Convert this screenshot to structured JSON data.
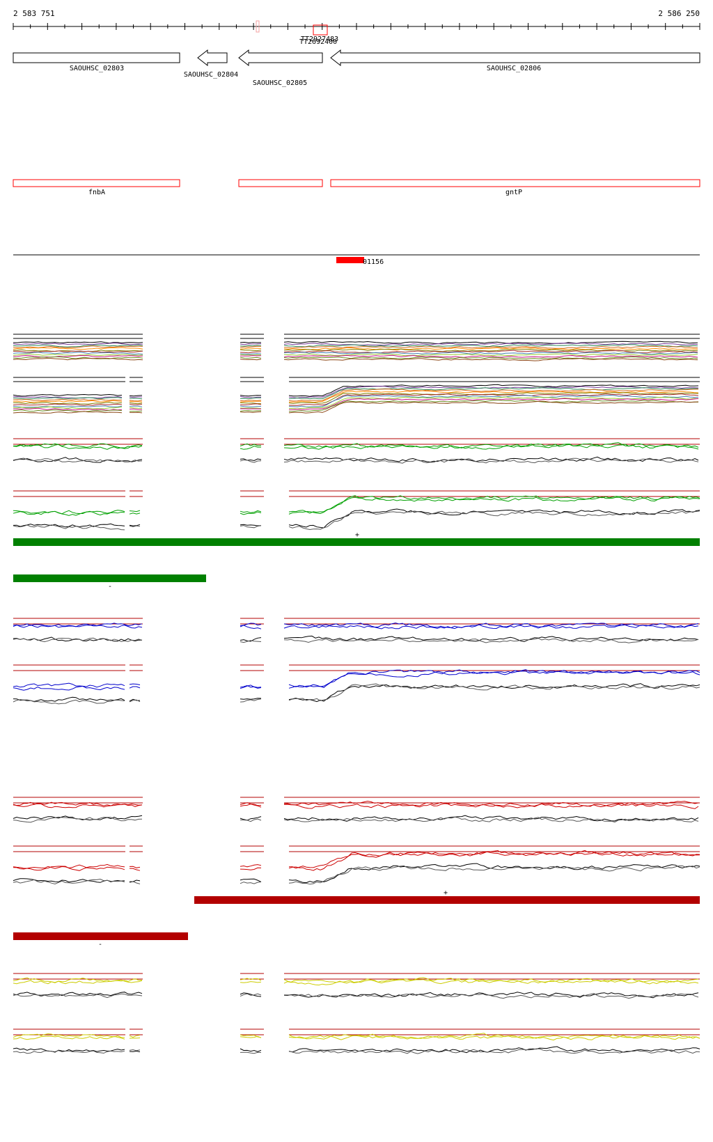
{
  "coordinates": {
    "start_label": "2 583 751",
    "end_label": "2 586 250"
  },
  "terminator_labels": [
    "TT2927483",
    "TT2692400"
  ],
  "genes": [
    {
      "name": "SAOUHSC_02803",
      "strand": "+"
    },
    {
      "name": "SAOUHSC_02804",
      "strand": "-"
    },
    {
      "name": "SAOUHSC_02805",
      "strand": "-"
    },
    {
      "name": "SAOUHSC_02806",
      "strand": "-"
    }
  ],
  "gene_names": [
    {
      "name": "fnbA"
    },
    {
      "name": ""
    },
    {
      "name": "gntP"
    }
  ],
  "feature": {
    "label": "01156",
    "color": "#ff0000"
  },
  "strand_markers": {
    "plus": "+",
    "minus": "-"
  },
  "colors": {
    "gene_outline": "#000000",
    "name_box_outline": "#ff0000",
    "green_bar": "#008000",
    "darkred_bar": "#b30000",
    "blue_series": "#0000cc",
    "green_series": "#00a000",
    "red_series": "#cc0000",
    "yellow_series": "#cccc00",
    "threshold": "#b30000"
  },
  "tracks": [
    {
      "id": "multi-1",
      "kind": "multi"
    },
    {
      "id": "multi-2",
      "kind": "multi"
    },
    {
      "id": "green-1",
      "color": "#00a000"
    },
    {
      "id": "green-2",
      "color": "#00a000"
    },
    {
      "id": "blue-1",
      "color": "#0000cc"
    },
    {
      "id": "blue-2",
      "color": "#0000cc"
    },
    {
      "id": "red-1",
      "color": "#cc0000"
    },
    {
      "id": "red-2",
      "color": "#cc0000"
    },
    {
      "id": "yellow-1",
      "color": "#cccc00"
    },
    {
      "id": "yellow-2",
      "color": "#cccc00"
    }
  ]
}
